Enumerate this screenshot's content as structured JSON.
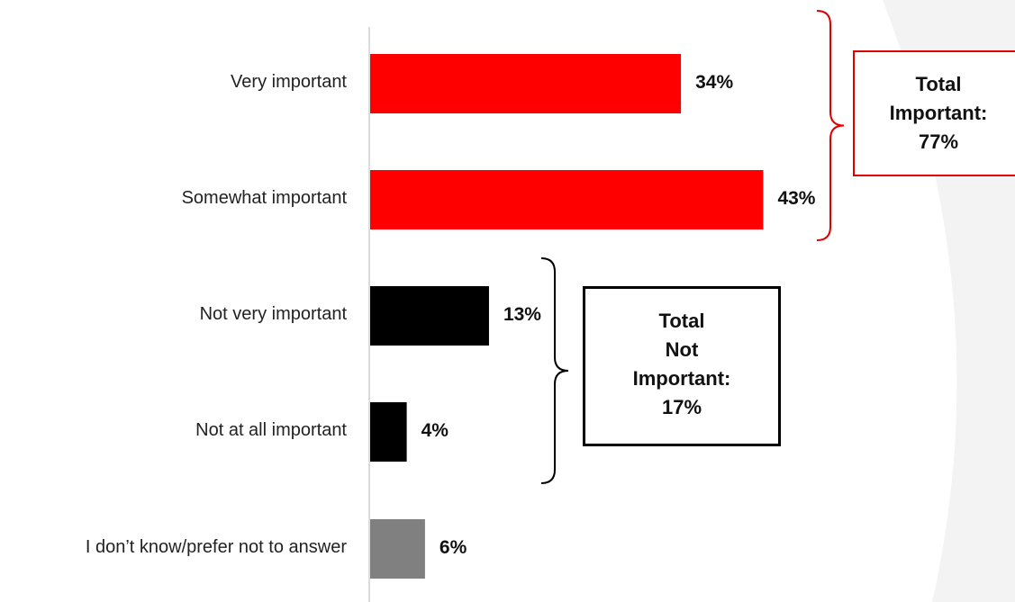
{
  "chart_data": {
    "type": "bar",
    "orientation": "horizontal",
    "categories": [
      "Very important",
      "Somewhat important",
      "Not very important",
      "Not at all important",
      "I don’t know/prefer not to answer"
    ],
    "values": [
      34,
      43,
      13,
      4,
      6
    ],
    "value_labels": [
      "34%",
      "43%",
      "13%",
      "4%",
      "6%"
    ],
    "colors": [
      "#ff0000",
      "#ff0000",
      "#000000",
      "#000000",
      "#808080"
    ],
    "xlim": [
      0,
      100
    ],
    "grid": false,
    "groups": [
      {
        "members": [
          "Very important",
          "Somewhat important"
        ],
        "label_lines": [
          "Total",
          "Important:",
          "77%"
        ],
        "color": "#e00000"
      },
      {
        "members": [
          "Not very important",
          "Not at all important"
        ],
        "label_lines": [
          "Total",
          "Not",
          "Important:",
          "17%"
        ],
        "color": "#000000"
      }
    ]
  }
}
